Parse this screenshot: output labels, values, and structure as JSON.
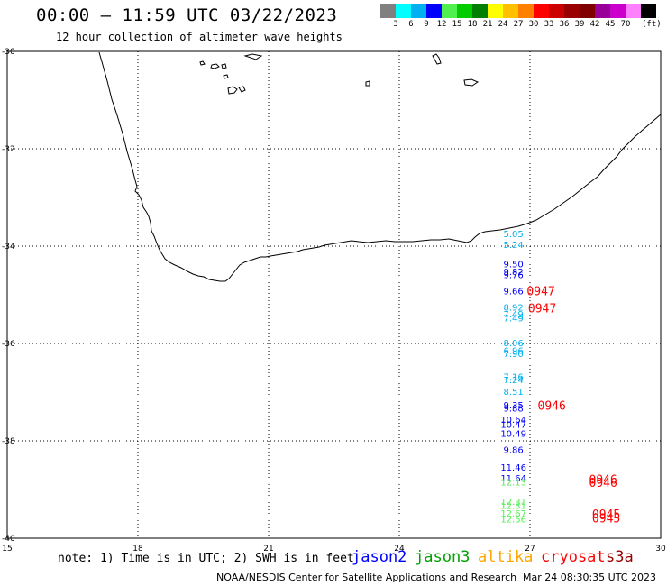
{
  "header": {
    "title": "00:00 – 11:59 UTC 03/22/2023",
    "subtitle": "12 hour collection of altimeter wave heights"
  },
  "colorbar": {
    "colors": [
      "#808080",
      "#00ffff",
      "#00b0f0",
      "#0000ff",
      "#50f050",
      "#00cc00",
      "#008000",
      "#ffff00",
      "#ffc000",
      "#ff8000",
      "#ff0000",
      "#cc0000",
      "#990000",
      "#800000",
      "#990099",
      "#cc00cc",
      "#ff80ff",
      "#000000"
    ],
    "labels": [
      "3",
      "6",
      "9",
      "12",
      "15",
      "18",
      "21",
      "24",
      "27",
      "30",
      "33",
      "36",
      "39",
      "42",
      "45",
      "70"
    ],
    "unit": "(ft)"
  },
  "map": {
    "lon_range": [
      15,
      30
    ],
    "lat_range": [
      -40,
      -30
    ],
    "x_ticks": [
      "15",
      "18",
      "21",
      "24",
      "27",
      "30"
    ],
    "y_ticks": [
      "-30",
      "-32",
      "-34",
      "-36",
      "-38",
      "-40"
    ],
    "grid": true,
    "gridlines_lon": [
      18,
      21,
      24,
      27
    ],
    "gridlines_lat": [
      -32,
      -34,
      -36,
      -38
    ]
  },
  "observations": [
    {
      "lon": 26.62,
      "lat": -33.74,
      "value": "5.05",
      "color": "#00b0f0"
    },
    {
      "lon": 26.62,
      "lat": -33.96,
      "value": "5.24",
      "color": "#00b0f0"
    },
    {
      "lon": 26.62,
      "lat": -34.36,
      "value": "9.50",
      "color": "#0000ff"
    },
    {
      "lon": 26.62,
      "lat": -34.52,
      "value": "9.82",
      "color": "#0000ff"
    },
    {
      "lon": 26.62,
      "lat": -34.58,
      "value": "9.76",
      "color": "#0000ff"
    },
    {
      "lon": 26.62,
      "lat": -34.92,
      "value": "9.66",
      "color": "#0000ff"
    },
    {
      "lon": 26.62,
      "lat": -35.25,
      "value": "8.92",
      "color": "#00b0f0"
    },
    {
      "lon": 26.62,
      "lat": -35.39,
      "value": "7.49",
      "color": "#00b0f0"
    },
    {
      "lon": 26.62,
      "lat": -35.47,
      "value": "7.49",
      "color": "#00b0f0"
    },
    {
      "lon": 26.62,
      "lat": -35.98,
      "value": "8.06",
      "color": "#00b0f0"
    },
    {
      "lon": 26.62,
      "lat": -36.14,
      "value": "6.96",
      "color": "#00b0f0"
    },
    {
      "lon": 26.62,
      "lat": -36.2,
      "value": "7.90",
      "color": "#00b0f0"
    },
    {
      "lon": 26.62,
      "lat": -36.68,
      "value": "7.16",
      "color": "#00b0f0"
    },
    {
      "lon": 26.62,
      "lat": -36.74,
      "value": "7.24",
      "color": "#00b0f0"
    },
    {
      "lon": 26.62,
      "lat": -36.98,
      "value": "8.51",
      "color": "#00b0f0"
    },
    {
      "lon": 26.62,
      "lat": -37.26,
      "value": "9.35",
      "color": "#0000ff"
    },
    {
      "lon": 26.62,
      "lat": -37.32,
      "value": "9.88",
      "color": "#0000ff"
    },
    {
      "lon": 26.62,
      "lat": -37.56,
      "value": "10.64",
      "color": "#0000ff"
    },
    {
      "lon": 26.62,
      "lat": -37.66,
      "value": "10.47",
      "color": "#0000ff"
    },
    {
      "lon": 26.62,
      "lat": -37.84,
      "value": "10.49",
      "color": "#0000ff"
    },
    {
      "lon": 26.62,
      "lat": -38.18,
      "value": "9.86",
      "color": "#0000ff"
    },
    {
      "lon": 26.62,
      "lat": -38.54,
      "value": "11.46",
      "color": "#0000ff"
    },
    {
      "lon": 26.62,
      "lat": -38.76,
      "value": "11.64",
      "color": "#0000ff"
    },
    {
      "lon": 26.62,
      "lat": -38.84,
      "value": "12.13",
      "color": "#50f050"
    },
    {
      "lon": 26.62,
      "lat": -39.24,
      "value": "12.31",
      "color": "#50f050"
    },
    {
      "lon": 26.62,
      "lat": -39.32,
      "value": "12.31",
      "color": "#50f050"
    },
    {
      "lon": 26.62,
      "lat": -39.48,
      "value": "12.67",
      "color": "#50f050"
    },
    {
      "lon": 26.62,
      "lat": -39.6,
      "value": "12.56",
      "color": "#50f050"
    }
  ],
  "pass_times": [
    {
      "lon": 27.25,
      "lat": -34.92,
      "text": "0947"
    },
    {
      "lon": 27.28,
      "lat": -35.27,
      "text": "0947"
    },
    {
      "lon": 27.5,
      "lat": -37.27,
      "text": "0946"
    },
    {
      "lon": 28.68,
      "lat": -38.79,
      "text": "0946"
    },
    {
      "lon": 28.68,
      "lat": -38.85,
      "text": "0946"
    },
    {
      "lon": 28.75,
      "lat": -39.5,
      "text": "0945"
    },
    {
      "lon": 28.75,
      "lat": -39.58,
      "text": "0945"
    }
  ],
  "footer": {
    "note": "note: 1) Time is in UTC; 2) SWH is in feet",
    "satellites": [
      {
        "name": "jason2",
        "color": "#0000ff"
      },
      {
        "name": "jason3",
        "color": "#00a000"
      },
      {
        "name": "altika",
        "color": "#ffa500"
      },
      {
        "name": "cryosat",
        "color": "#ff0000"
      },
      {
        "name": "s3a",
        "color": "#990000"
      }
    ],
    "credit": "NOAA/NESDIS Center for Satellite Applications and Research",
    "timestamp": "Mar 24 08:30:35 UTC 2023"
  }
}
